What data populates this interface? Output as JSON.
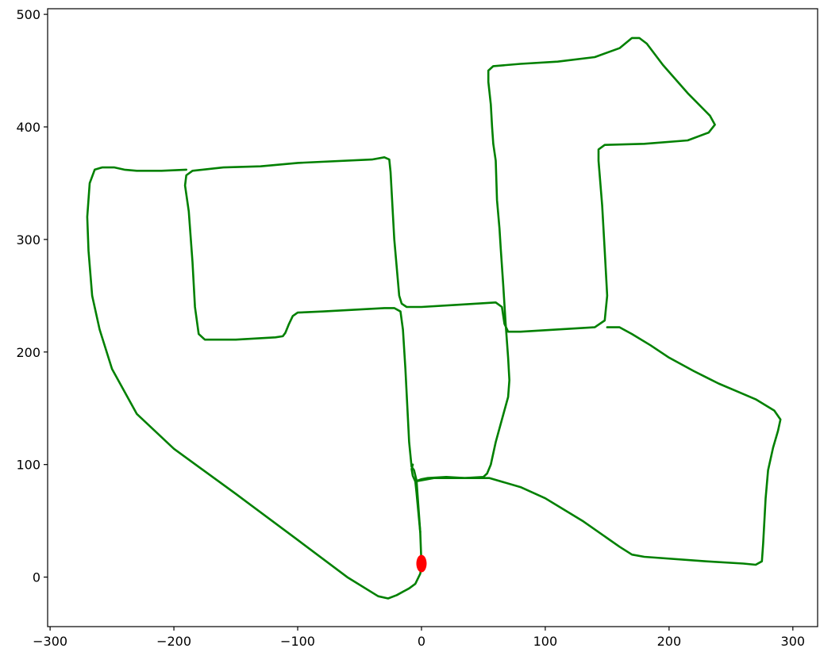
{
  "chart_data": {
    "type": "line",
    "title": "",
    "xlabel": "",
    "ylabel": "",
    "xlim": [
      -302,
      320
    ],
    "ylim": [
      -44,
      505
    ],
    "x_ticks": [
      -300,
      -200,
      -100,
      0,
      100,
      200,
      300
    ],
    "x_tick_labels": [
      "−300",
      "−200",
      "−100",
      "0",
      "100",
      "200",
      "300"
    ],
    "y_ticks": [
      0,
      100,
      200,
      300,
      400,
      500
    ],
    "y_tick_labels": [
      "0",
      "100",
      "200",
      "300",
      "400",
      "500"
    ],
    "grid": false,
    "legend": "none",
    "series": [
      {
        "color": "#008000",
        "style": "solid",
        "segments": [
          [
            [
              0,
              10
            ],
            [
              -1,
              40
            ],
            [
              -4,
              86
            ],
            [
              -6,
              95
            ],
            [
              -8,
              98
            ],
            [
              -10,
              120
            ],
            [
              -13,
              185
            ],
            [
              -15,
              220
            ],
            [
              -17,
              236
            ],
            [
              -22,
              239
            ],
            [
              -30,
              239
            ],
            [
              -80,
              236
            ],
            [
              -100,
              235
            ],
            [
              -104,
              232
            ],
            [
              -107,
              225
            ],
            [
              -110,
              217
            ],
            [
              -112,
              214
            ],
            [
              -118,
              213
            ],
            [
              -150,
              211
            ],
            [
              -175,
              211
            ],
            [
              -180,
              216
            ],
            [
              -183,
              240
            ],
            [
              -185,
              280
            ],
            [
              -188,
              325
            ],
            [
              -191,
              348
            ],
            [
              -190,
              357
            ],
            [
              -185,
              361
            ],
            [
              -160,
              364
            ],
            [
              -130,
              365
            ],
            [
              -100,
              368
            ],
            [
              -40,
              371
            ],
            [
              -30,
              373
            ],
            [
              -26,
              371
            ],
            [
              -25,
              360
            ],
            [
              -22,
              300
            ],
            [
              -18,
              250
            ],
            [
              -16,
              243
            ],
            [
              -12,
              240
            ],
            [
              0,
              240
            ],
            [
              30,
              242
            ],
            [
              60,
              244
            ],
            [
              65,
              240
            ],
            [
              67,
              225
            ],
            [
              70,
              218
            ],
            [
              80,
              218
            ],
            [
              140,
              222
            ],
            [
              148,
              228
            ],
            [
              150,
              250
            ],
            [
              148,
              290
            ],
            [
              146,
              330
            ],
            [
              143,
              370
            ],
            [
              143,
              380
            ],
            [
              148,
              384
            ],
            [
              180,
              385
            ],
            [
              215,
              388
            ],
            [
              232,
              395
            ],
            [
              237,
              402
            ],
            [
              233,
              410
            ],
            [
              215,
              430
            ],
            [
              195,
              455
            ],
            [
              182,
              474
            ],
            [
              176,
              479
            ],
            [
              170,
              479
            ],
            [
              160,
              470
            ],
            [
              140,
              462
            ],
            [
              110,
              458
            ],
            [
              80,
              456
            ],
            [
              58,
              454
            ],
            [
              54,
              450
            ],
            [
              54,
              440
            ],
            [
              56,
              420
            ],
            [
              57,
              400
            ],
            [
              58,
              385
            ],
            [
              60,
              370
            ],
            [
              61,
              335
            ],
            [
              63,
              310
            ],
            [
              64,
              292
            ],
            [
              66,
              260
            ],
            [
              68,
              225
            ],
            [
              70,
              195
            ],
            [
              71,
              175
            ],
            [
              70,
              160
            ],
            [
              65,
              140
            ],
            [
              60,
              120
            ],
            [
              56,
              100
            ],
            [
              53,
              92
            ],
            [
              50,
              89
            ],
            [
              35,
              88
            ],
            [
              20,
              89
            ],
            [
              5,
              88
            ],
            [
              0,
              87
            ],
            [
              -5,
              85
            ],
            [
              -7,
              90
            ],
            [
              -8,
              96
            ],
            [
              -7,
              100
            ]
          ],
          [
            [
              0,
              10
            ],
            [
              -1,
              3
            ],
            [
              -5,
              -6
            ],
            [
              -10,
              -10
            ],
            [
              -20,
              -16
            ],
            [
              -27,
              -19
            ],
            [
              -35,
              -17
            ],
            [
              -60,
              0
            ],
            [
              -100,
              33
            ],
            [
              -150,
              74
            ],
            [
              -200,
              114
            ],
            [
              -230,
              145
            ],
            [
              -250,
              185
            ],
            [
              -260,
              220
            ],
            [
              -266,
              250
            ],
            [
              -269,
              290
            ],
            [
              -270,
              320
            ],
            [
              -268,
              350
            ],
            [
              -264,
              362
            ],
            [
              -258,
              364
            ],
            [
              -248,
              364
            ],
            [
              -240,
              362
            ],
            [
              -230,
              361
            ],
            [
              -210,
              361
            ],
            [
              -190,
              362
            ]
          ],
          [
            [
              -5,
              85
            ],
            [
              -4,
              75
            ],
            [
              -1,
              40
            ]
          ],
          [
            [
              -5,
              85
            ],
            [
              10,
              88
            ],
            [
              55,
              88
            ],
            [
              80,
              80
            ],
            [
              100,
              70
            ],
            [
              130,
              50
            ],
            [
              160,
              27
            ],
            [
              170,
              20
            ],
            [
              180,
              18
            ],
            [
              230,
              14
            ],
            [
              260,
              12
            ],
            [
              270,
              11
            ],
            [
              275,
              14
            ],
            [
              276,
              30
            ],
            [
              278,
              70
            ],
            [
              280,
              95
            ],
            [
              284,
              115
            ],
            [
              288,
              130
            ],
            [
              290,
              140
            ],
            [
              285,
              148
            ],
            [
              270,
              158
            ],
            [
              255,
              165
            ],
            [
              240,
              172
            ],
            [
              220,
              183
            ],
            [
              200,
              195
            ],
            [
              185,
              206
            ],
            [
              170,
              216
            ],
            [
              160,
              222
            ],
            [
              150,
              222
            ]
          ]
        ]
      }
    ],
    "markers": [
      {
        "x": 0,
        "y": 12,
        "color": "#ff0000",
        "shape": "ellipse"
      }
    ]
  }
}
